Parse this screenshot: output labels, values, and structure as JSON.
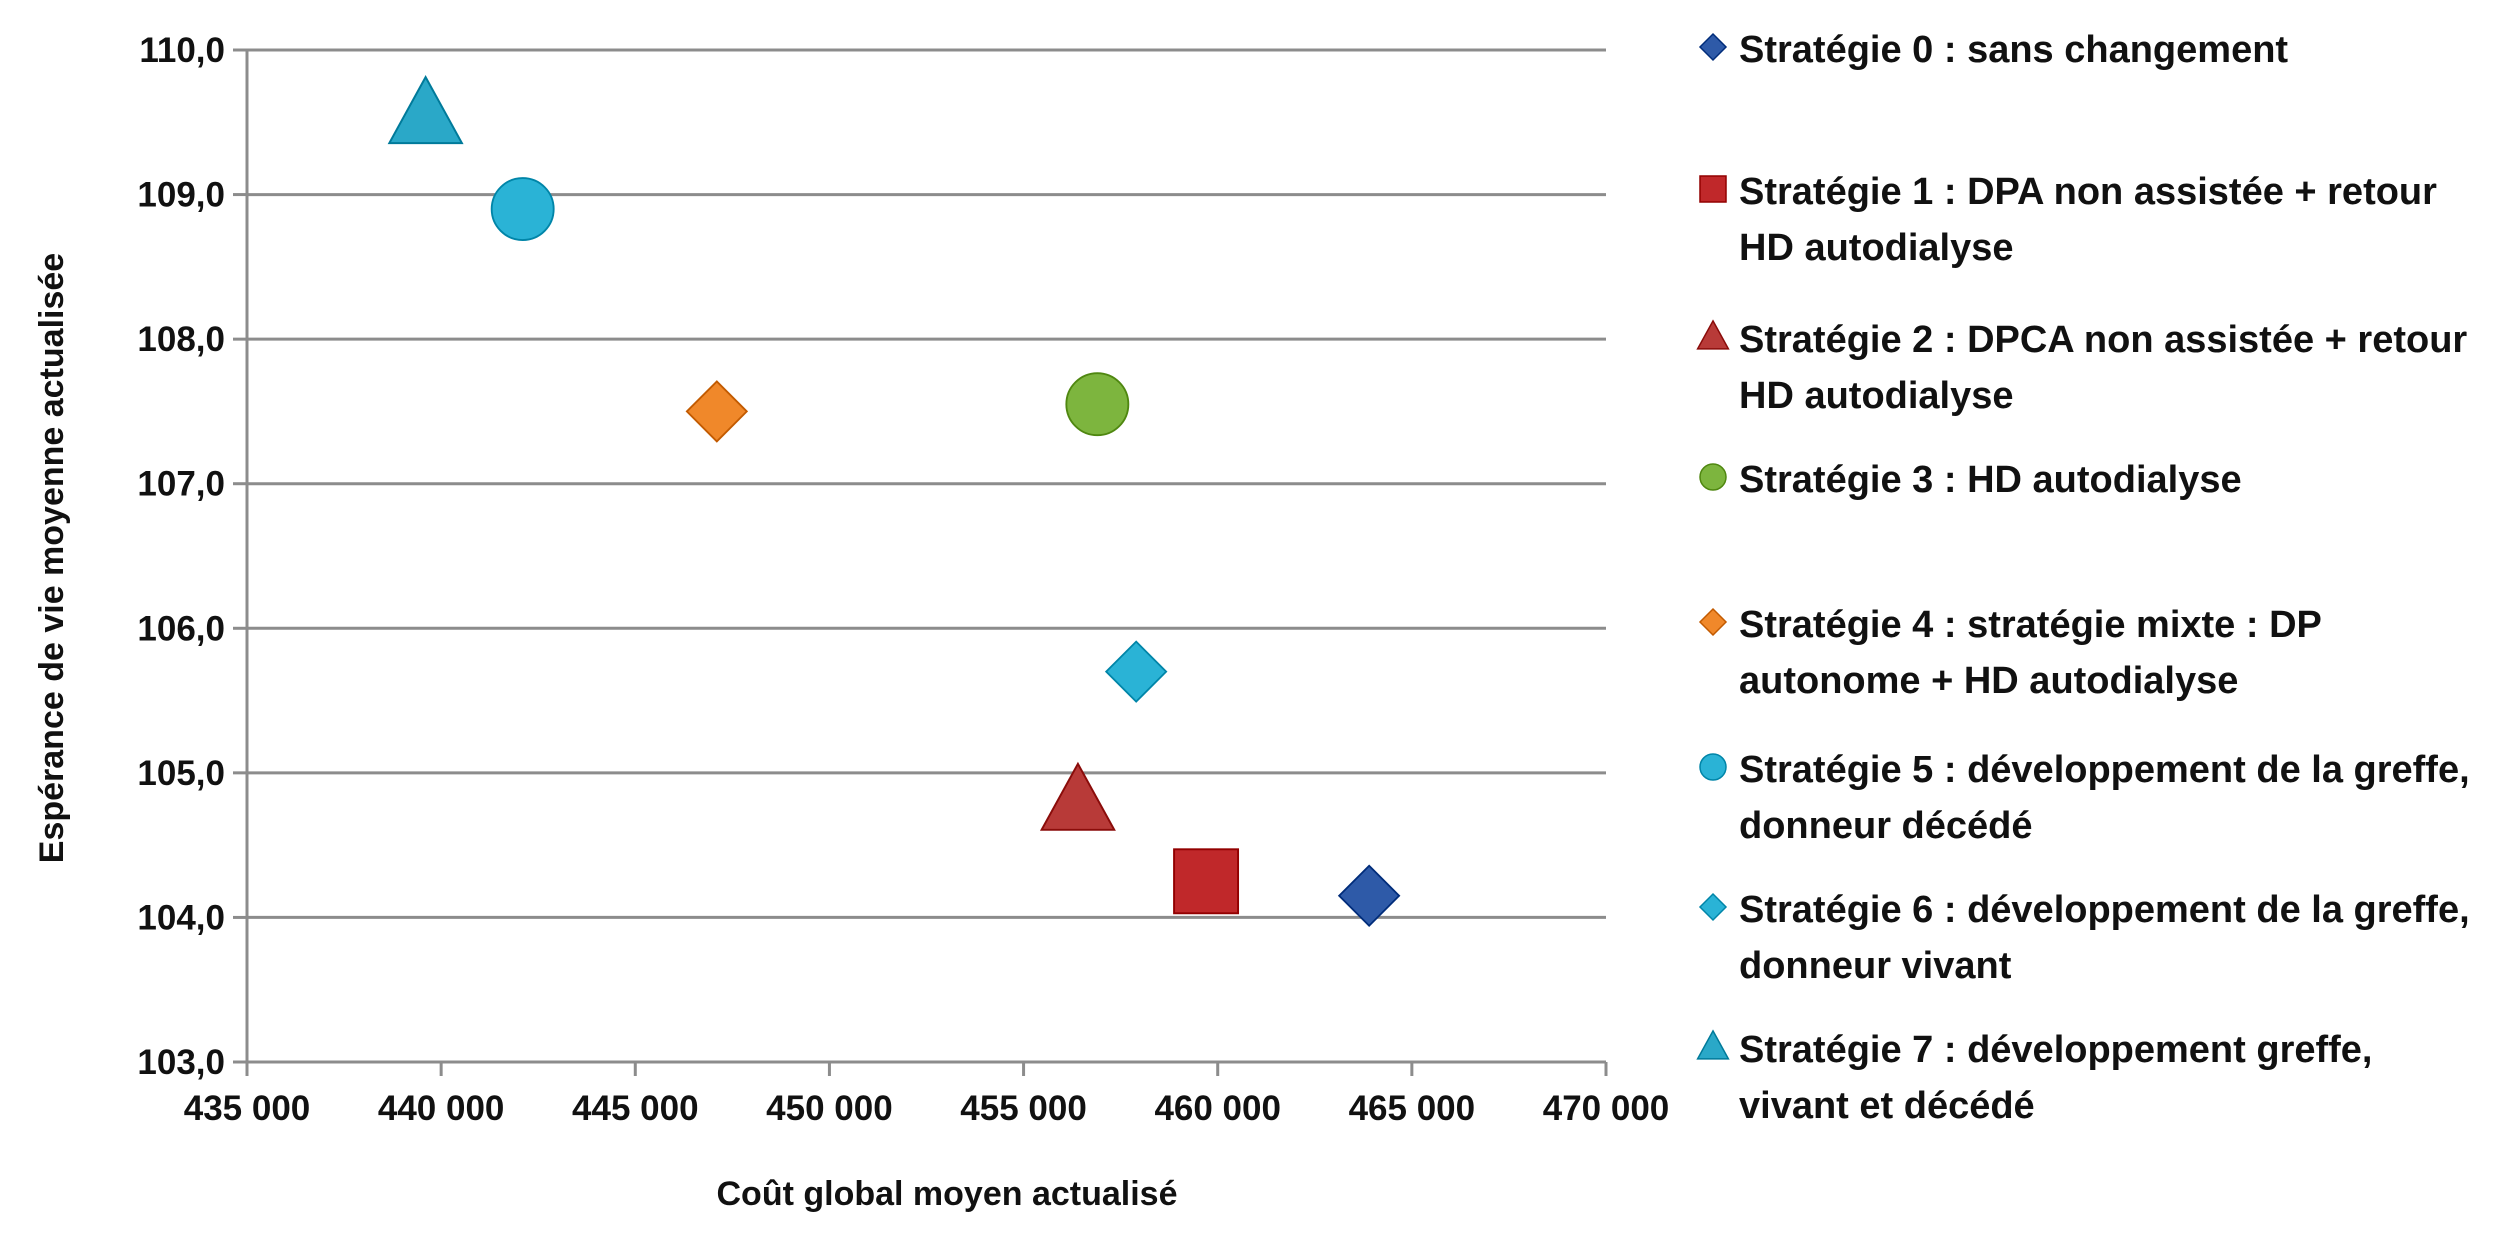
{
  "chart_data": {
    "type": "scatter",
    "xlabel": "Coût global moyen actualisé",
    "ylabel": "Espérance de vie moyenne actualisée",
    "xlim": [
      435000,
      470000
    ],
    "ylim": [
      103.0,
      110.0
    ],
    "x_ticks": [
      "435 000",
      "440 000",
      "445 000",
      "450 000",
      "455 000",
      "460 000",
      "465 000",
      "470 000"
    ],
    "y_ticks": [
      "110,0",
      "109,0",
      "108,0",
      "107,0",
      "106,0",
      "105,0",
      "104,0",
      "103,0"
    ],
    "grid": "horizontal",
    "legend_position": "right",
    "series": [
      {
        "name": "Stratégie 0 : sans changement",
        "marker": "diamond",
        "color": "#2E5AA8",
        "points": [
          {
            "x": 463900,
            "y": 104.15
          }
        ]
      },
      {
        "name": "Stratégie 1 : DPA non assistée + retour HD autodialyse",
        "marker": "square",
        "color": "#C0282A",
        "points": [
          {
            "x": 459700,
            "y": 104.25
          }
        ]
      },
      {
        "name": "Stratégie 2 : DPCA non assistée + retour HD autodialyse",
        "marker": "triangle",
        "color": "#B83A38",
        "points": [
          {
            "x": 456400,
            "y": 104.8
          }
        ]
      },
      {
        "name": "Stratégie  3 : HD autodialyse",
        "marker": "circle",
        "color": "#7DB53E",
        "points": [
          {
            "x": 456900,
            "y": 107.55
          }
        ]
      },
      {
        "name": "Stratégie  4 : stratégie mixte : DP autonome + HD autodialyse",
        "marker": "diamond",
        "color": "#F0882A",
        "points": [
          {
            "x": 447100,
            "y": 107.5
          }
        ]
      },
      {
        "name": "Stratégie 5 : développement de la greffe, donneur décédé",
        "marker": "circle",
        "color": "#2AB3D6",
        "points": [
          {
            "x": 442100,
            "y": 108.9
          }
        ]
      },
      {
        "name": "Stratégie 6 : développement de la greffe, donneur vivant",
        "marker": "diamond",
        "color": "#2AB3D6",
        "points": [
          {
            "x": 457900,
            "y": 105.7
          }
        ]
      },
      {
        "name": "Stratégie 7 : développement greffe, vivant et décédé",
        "marker": "triangle",
        "color": "#2AA8C8",
        "points": [
          {
            "x": 439600,
            "y": 109.55
          }
        ]
      }
    ]
  }
}
